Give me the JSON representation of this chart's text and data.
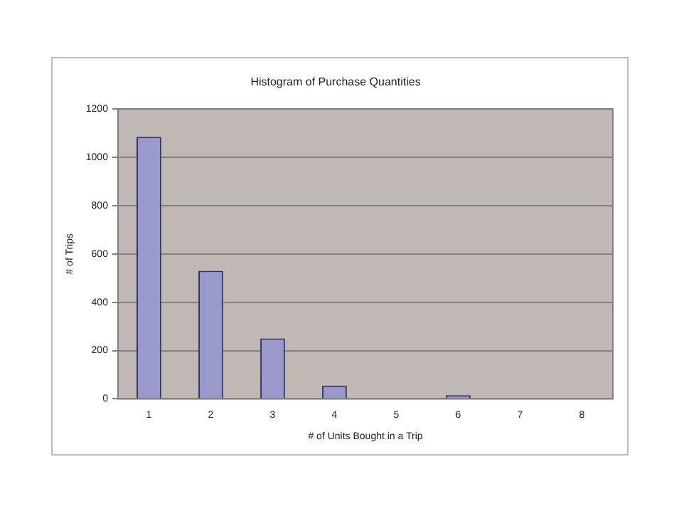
{
  "chart_data": {
    "type": "bar",
    "title": "Histogram of Purchase Quantities",
    "xlabel": "# of Units Bought in a Trip",
    "ylabel": "# of Trips",
    "categories": [
      "1",
      "2",
      "3",
      "4",
      "5",
      "6",
      "7",
      "8"
    ],
    "values": [
      1085,
      530,
      250,
      55,
      3,
      15,
      0,
      3
    ],
    "color": "#9999cc",
    "ylim": [
      0,
      1200
    ],
    "yticks": [
      0,
      200,
      400,
      600,
      800,
      1000,
      1200
    ],
    "grid": "y",
    "legend": false
  }
}
